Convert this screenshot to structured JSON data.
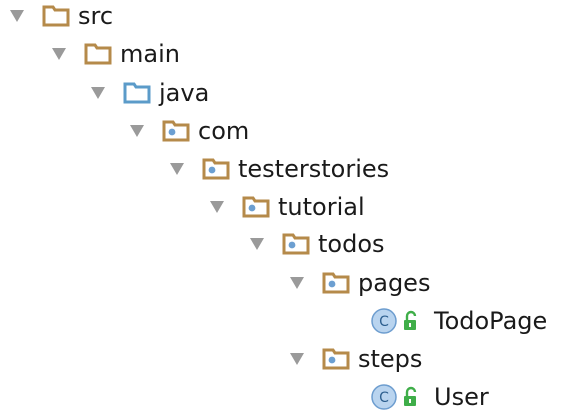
{
  "tree": {
    "nodes": [
      {
        "label": "src",
        "icon": "folder-source-icon",
        "expanded": true
      },
      {
        "label": "main",
        "icon": "folder-icon",
        "expanded": true
      },
      {
        "label": "java",
        "icon": "folder-java-root-icon",
        "expanded": true
      },
      {
        "label": "com",
        "icon": "package-icon",
        "expanded": true
      },
      {
        "label": "testerstories",
        "icon": "package-icon",
        "expanded": true
      },
      {
        "label": "tutorial",
        "icon": "package-icon",
        "expanded": true
      },
      {
        "label": "todos",
        "icon": "package-icon",
        "expanded": true
      },
      {
        "label": "pages",
        "icon": "package-icon",
        "expanded": true
      },
      {
        "label": "TodoPage",
        "icon": "class-icon",
        "class_badge": "C",
        "access": "public-lock-icon"
      },
      {
        "label": "steps",
        "icon": "package-icon",
        "expanded": true
      },
      {
        "label": "User",
        "icon": "class-icon",
        "class_badge": "C",
        "access": "public-lock-icon"
      }
    ]
  },
  "colors": {
    "folder": "#b58a4a",
    "folder_fill": "#ffffff",
    "java_folder": "#5b9bc9",
    "package_dot": "#6c9fd1",
    "arrow": "#9a9a9a",
    "class_circle": "#b9d4ef",
    "class_border": "#6d9dcf",
    "lock": "#3fae49"
  }
}
